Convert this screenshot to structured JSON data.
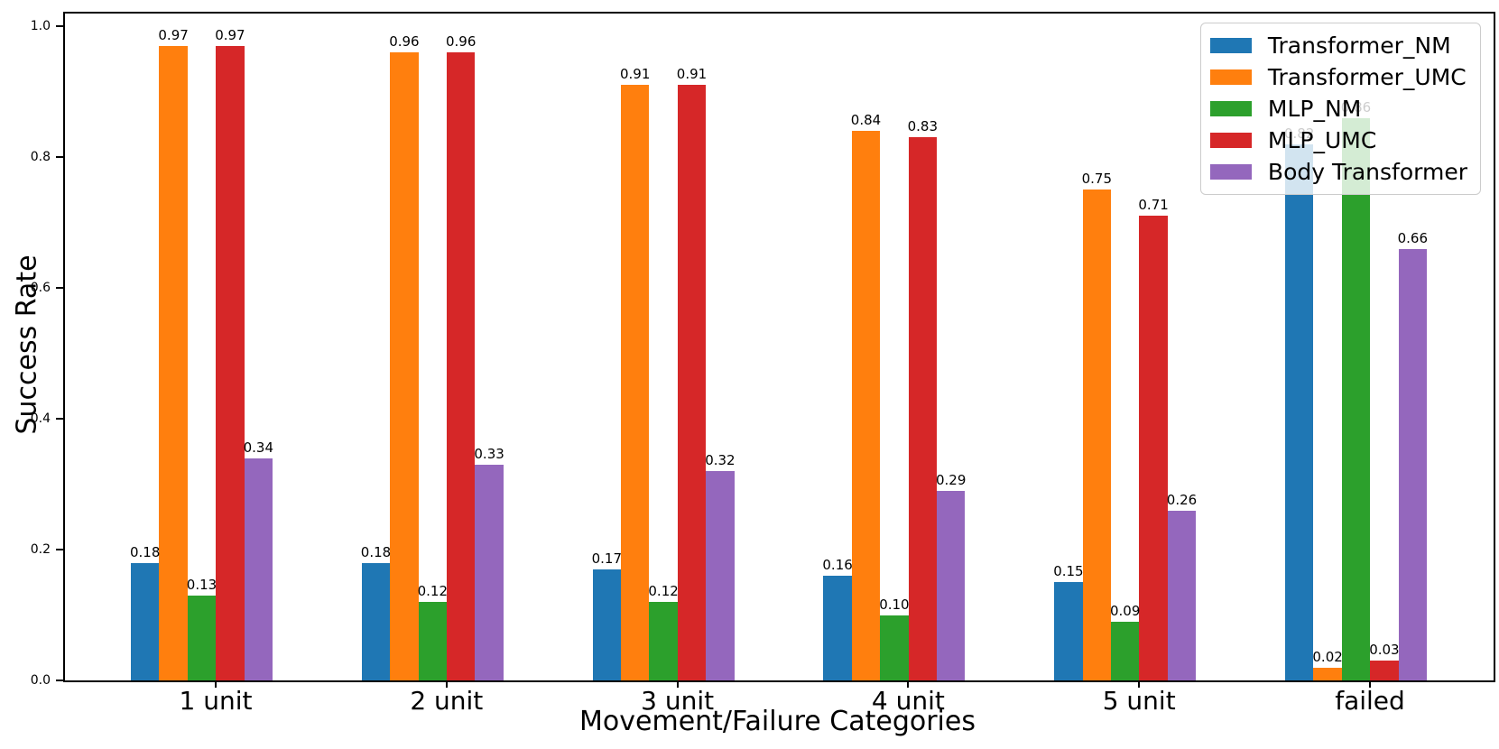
{
  "chart_data": {
    "type": "bar",
    "title": "",
    "xlabel": "Movement/Failure Categories",
    "ylabel": "Success Rate",
    "categories": [
      "1 unit",
      "2 unit",
      "3 unit",
      "4 unit",
      "5 unit",
      "failed"
    ],
    "series": [
      {
        "name": "Transformer_NM",
        "color": "#1f77b4",
        "values": [
          0.18,
          0.18,
          0.17,
          0.16,
          0.15,
          0.82
        ]
      },
      {
        "name": "Transformer_UMC",
        "color": "#ff7f0e",
        "values": [
          0.97,
          0.96,
          0.91,
          0.84,
          0.75,
          0.02
        ]
      },
      {
        "name": "MLP_NM",
        "color": "#2ca02c",
        "values": [
          0.13,
          0.12,
          0.12,
          0.1,
          0.09,
          0.86
        ]
      },
      {
        "name": "MLP_UMC",
        "color": "#d62728",
        "values": [
          0.97,
          0.96,
          0.91,
          0.83,
          0.71,
          0.03
        ]
      },
      {
        "name": "Body Transformer",
        "color": "#9467bd",
        "values": [
          0.34,
          0.33,
          0.32,
          0.29,
          0.26,
          0.66
        ]
      }
    ],
    "bar_labels": true,
    "bar_label_decimals": 2,
    "yticks": [
      "0.0",
      "0.2",
      "0.4",
      "0.6",
      "0.8",
      "1.0"
    ],
    "ylim": [
      0.0,
      1.02
    ],
    "grid": false,
    "legend_position": "upper right",
    "background_color": "#ffffff",
    "axis_color": "#000000"
  }
}
